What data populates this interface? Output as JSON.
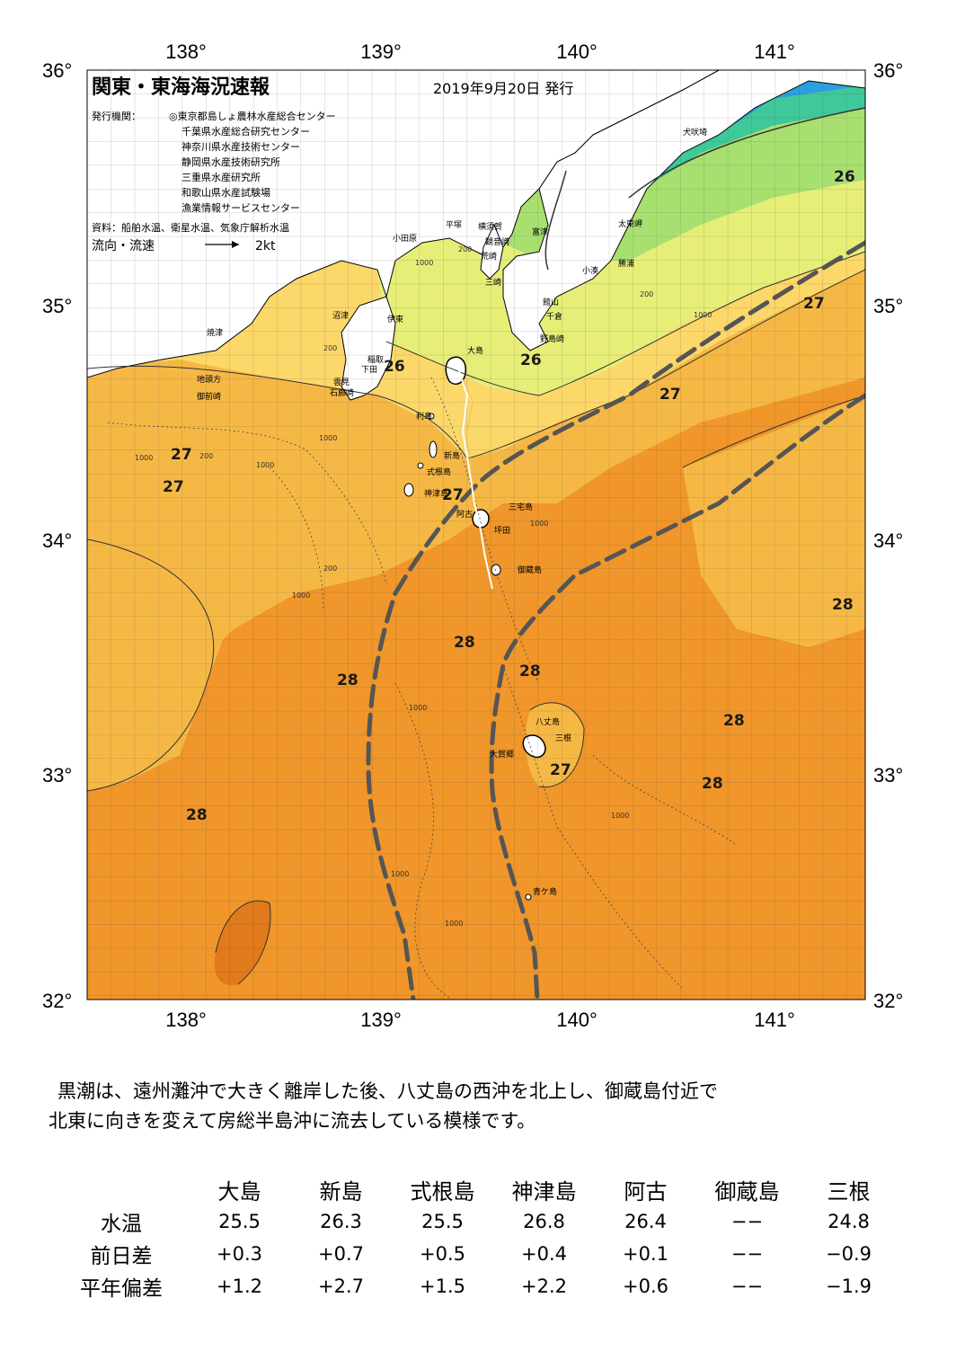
{
  "header": {
    "title": "関東・東海海況速報",
    "date": "2019年9月20日 発行",
    "issuer_label": "発行機関：",
    "issuers": [
      "◎東京都島しょ農林水産総合センター",
      "千葉県水産総合研究センター",
      "神奈川県水産技術センター",
      "静岡県水産技術研究所",
      "三重県水産研究所",
      "和歌山県水産試験場",
      "漁業情報サービスセンター"
    ],
    "source": "資料：船舶水温、衛星水温、気象庁解析水温",
    "legend_label": "流向・流速",
    "legend_scale": "2kt"
  },
  "axes": {
    "top_lon": [
      "138°",
      "139°",
      "140°",
      "141°"
    ],
    "bottom_lon": [
      "138°",
      "139°",
      "140°",
      "141°"
    ],
    "left_lat": [
      "36°",
      "35°",
      "34°",
      "33°",
      "32°"
    ],
    "right_lat": [
      "36°",
      "35°",
      "34°",
      "33°",
      "32°"
    ]
  },
  "temperature_labels": [
    "26",
    "26",
    "26",
    "27",
    "27",
    "27",
    "27",
    "27",
    "27",
    "28",
    "28",
    "28",
    "28",
    "28",
    "28",
    "28",
    "27",
    "28"
  ],
  "depth_labels": [
    "1000",
    "200",
    "200",
    "1000",
    "1000",
    "200",
    "1000",
    "1000",
    "200",
    "1000",
    "1000",
    "200",
    "1000",
    "1000",
    "1000",
    "1000"
  ],
  "places": {
    "inubozaki": "犬吠埼",
    "taitomisaki": "太東岬",
    "katsuura": "勝浦",
    "kominato": "小湊",
    "futtsu": "富津",
    "tateyama": "館山",
    "chikura": "千倉",
    "nojimazaki": "野島崎",
    "yokosuka": "横須賀",
    "kannonzaki": "観音崎",
    "arasaki": "荒崎",
    "misaki": "三崎",
    "hiratsuka": "平塚",
    "odawara": "小田原",
    "numazu": "沼津",
    "ito": "伊東",
    "inatori": "稲取",
    "shimoda": "下田",
    "kumomi": "雲見",
    "irozaki": "石廊崎",
    "yaizu": "焼津",
    "jitokata": "地頭方",
    "omaezaki": "御前崎",
    "oshima": "大島",
    "toshima": "利島",
    "niijima": "新島",
    "shikinejima": "式根島",
    "kozushima": "神津島",
    "miyakejima": "三宅島",
    "ako": "阿古",
    "tsubota": "坪田",
    "mikurajima": "御蔵島",
    "hachijojima": "八丈島",
    "mitsune": "三根",
    "okago": "大賀郷",
    "aogashima": "青ケ島"
  },
  "summary": {
    "line1": "黒潮は、遠州灘沖で大きく離岸した後、八丈島の西沖を北上し、御蔵島付近で",
    "line2": "北東に向きを変えて房総半島沖に流去している模様です。"
  },
  "table": {
    "headers": [
      "大島",
      "新島",
      "式根島",
      "神津島",
      "阿古",
      "御蔵島",
      "三根"
    ],
    "rows": [
      {
        "label": "水温",
        "values": [
          "25.5",
          "26.3",
          "25.5",
          "26.8",
          "26.4",
          "−−",
          "24.8"
        ]
      },
      {
        "label": "前日差",
        "values": [
          "+0.3",
          "+0.7",
          "+0.5",
          "+0.4",
          "+0.1",
          "−−",
          "−0.9"
        ]
      },
      {
        "label": "平年偏差",
        "values": [
          "+1.2",
          "+2.7",
          "+1.5",
          "+2.2",
          "+0.6",
          "−−",
          "−1.9"
        ]
      }
    ]
  },
  "colors": {
    "warm_28": "#f0962a",
    "warm_27": "#f6b845",
    "mid_26": "#fcd86a",
    "cool_25": "#e6ee78",
    "cool_24": "#a8e070",
    "cold_22": "#3fc89a",
    "cold_20": "#2aa0e0",
    "land": "#ffffff",
    "kuroshio_axis": "#555555"
  }
}
